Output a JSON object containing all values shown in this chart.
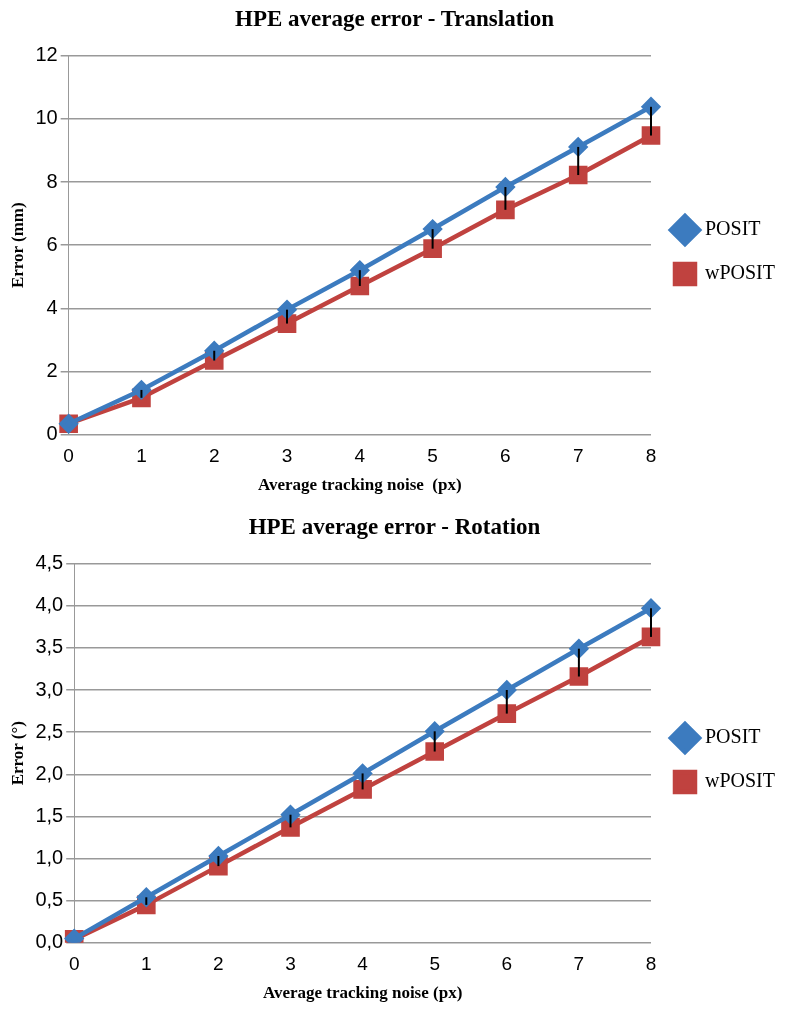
{
  "chart_data": [
    {
      "type": "line",
      "title": "HPE average error - Translation",
      "xlabel": "Average tracking noise  (px)",
      "ylabel": "Error (mm)",
      "categories": [
        "0",
        "1",
        "2",
        "3",
        "4",
        "5",
        "6",
        "7",
        "8"
      ],
      "series": [
        {
          "name": "POSIT",
          "color": "#3c7bbf",
          "marker": "diamond",
          "values": [
            0.35,
            1.42,
            2.66,
            3.96,
            5.21,
            6.51,
            7.84,
            9.11,
            10.38
          ],
          "errors": [
            null,
            [
              1.17,
              1.42
            ],
            [
              2.35,
              2.66
            ],
            [
              3.52,
              3.96
            ],
            [
              4.71,
              5.21
            ],
            [
              5.89,
              6.51
            ],
            [
              7.12,
              7.84
            ],
            [
              8.22,
              9.11
            ],
            [
              9.47,
              10.38
            ]
          ]
        },
        {
          "name": "wPOSIT",
          "color": "#c0423f",
          "marker": "square",
          "values": [
            0.35,
            1.17,
            2.35,
            3.52,
            4.71,
            5.89,
            7.12,
            8.22,
            9.47
          ]
        }
      ],
      "ylim": [
        0,
        12
      ],
      "yticks": [
        0,
        2,
        4,
        6,
        8,
        10,
        12
      ],
      "grid": "y",
      "legend": "right"
    },
    {
      "type": "line",
      "title": "HPE average error - Rotation",
      "xlabel": "Average tracking noise (px)",
      "ylabel": "Error (°)",
      "categories": [
        "0",
        "1",
        "2",
        "3",
        "4",
        "5",
        "6",
        "7",
        "8"
      ],
      "series": [
        {
          "name": "POSIT",
          "color": "#3c7bbf",
          "marker": "diamond",
          "values": [
            0.05,
            0.54,
            1.03,
            1.52,
            2.01,
            2.51,
            3.0,
            3.49,
            3.97
          ],
          "errors": [
            null,
            [
              0.45,
              0.54
            ],
            [
              0.91,
              1.03
            ],
            [
              1.37,
              1.52
            ],
            [
              1.82,
              2.01
            ],
            [
              2.27,
              2.51
            ],
            [
              2.72,
              3.0
            ],
            [
              3.16,
              3.49
            ],
            [
              3.63,
              3.97
            ]
          ]
        },
        {
          "name": "wPOSIT",
          "color": "#c0423f",
          "marker": "square",
          "values": [
            0.04,
            0.45,
            0.91,
            1.37,
            1.82,
            2.27,
            2.72,
            3.16,
            3.63
          ]
        }
      ],
      "ylim": [
        0,
        4.5
      ],
      "yticks": [
        {
          "value": 0,
          "label": "0,0"
        },
        {
          "value": 0.5,
          "label": "0,5"
        },
        {
          "value": 1,
          "label": "1,0"
        },
        {
          "value": 1.5,
          "label": "1,5"
        },
        {
          "value": 2,
          "label": "2,0"
        },
        {
          "value": 2.5,
          "label": "2,5"
        },
        {
          "value": 3,
          "label": "3,0"
        },
        {
          "value": 3.5,
          "label": "3,5"
        },
        {
          "value": 4,
          "label": "4,0"
        },
        {
          "value": 4.5,
          "label": "4,5"
        }
      ],
      "grid": "y",
      "legend": "right"
    }
  ]
}
